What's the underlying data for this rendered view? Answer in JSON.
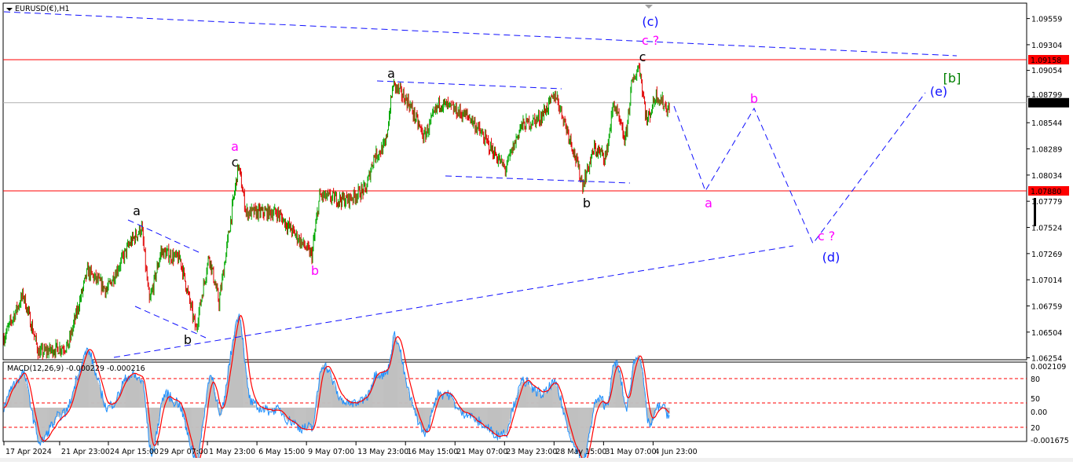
{
  "window": {
    "title": "EURUSD(€),H1"
  },
  "colors": {
    "bull": "#00a800",
    "bear": "#e00000",
    "wave_blue": "#1010ff",
    "wave_magenta": "#ff00ff",
    "wave_black": "#000000",
    "wave_green": "#008000",
    "level": "#ff0000",
    "bid": "#000000",
    "macd_hist": "#c0c0c0",
    "macd_line": "#1e90ff",
    "signal_line": "#ff0000"
  },
  "price_axis": {
    "ticks": [
      "1.09559",
      "1.09304",
      "1.09054",
      "1.08799",
      "1.08544",
      "1.08289",
      "1.08034",
      "1.07779",
      "1.07524",
      "1.07269",
      "1.07014",
      "1.06759",
      "1.06504",
      "1.06254"
    ],
    "tags": [
      {
        "label": "1.09158",
        "price": 1.09158,
        "color": "#ff0000"
      },
      {
        "label": "1.07880",
        "price": 1.0788,
        "color": "#ff0000"
      },
      {
        "label": "1.08739",
        "price": 1.08739,
        "color": "#000000"
      }
    ]
  },
  "time_axis": [
    {
      "label": "17 Apr 2024",
      "t": "2024-04-17T00:00"
    },
    {
      "label": "21 Apr 23:00",
      "t": "2024-04-21T23:00"
    },
    {
      "label": "24 Apr 15:00",
      "t": "2024-04-24T15:00"
    },
    {
      "label": "29 Apr 07:00",
      "t": "2024-04-29T07:00"
    },
    {
      "label": "1 May 23:00",
      "t": "2024-05-01T23:00"
    },
    {
      "label": "6 May 15:00",
      "t": "2024-05-06T15:00"
    },
    {
      "label": "9 May 07:00",
      "t": "2024-05-09T07:00"
    },
    {
      "label": "13 May 23:00",
      "t": "2024-05-13T23:00"
    },
    {
      "label": "16 May 15:00",
      "t": "2024-05-16T15:00"
    },
    {
      "label": "21 May 07:00",
      "t": "2024-05-21T07:00"
    },
    {
      "label": "23 May 23:00",
      "t": "2024-05-23T23:00"
    },
    {
      "label": "28 May 15:00",
      "t": "2024-05-28T15:00"
    },
    {
      "label": "31 May 07:00",
      "t": "2024-05-31T07:00"
    },
    {
      "label": "4 Jun 23:00",
      "t": "2024-06-04T23:00"
    }
  ],
  "chart_data": {
    "type": "candlestick",
    "symbol": "EURUSD(€),H1",
    "ylim": [
      1.0617,
      1.0973
    ],
    "grid": false,
    "price_path": [
      [
        "2024-04-17T00:00",
        1.0645
      ],
      [
        "2024-04-18T01:00",
        1.0687
      ],
      [
        "2024-04-18T21:00",
        1.063
      ],
      [
        "2024-04-22T11:00",
        1.0637
      ],
      [
        "2024-04-23T12:00",
        1.071
      ],
      [
        "2024-04-24T13:00",
        1.0691
      ],
      [
        "2024-04-25T19:00",
        1.0737
      ],
      [
        "2024-04-26T10:00",
        1.0752
      ],
      [
        "2024-04-26T20:00",
        1.0679
      ],
      [
        "2024-04-29T11:00",
        1.0729
      ],
      [
        "2024-04-30T12:00",
        1.0721
      ],
      [
        "2024-05-01T08:00",
        1.0653
      ],
      [
        "2024-05-02T01:00",
        1.0725
      ],
      [
        "2024-05-02T14:00",
        1.0679
      ],
      [
        "2024-05-03T15:00",
        1.0813
      ],
      [
        "2024-05-06T01:00",
        1.0767
      ],
      [
        "2024-05-07T17:00",
        1.0767
      ],
      [
        "2024-05-08T18:00",
        1.0744
      ],
      [
        "2024-05-09T14:00",
        1.0725
      ],
      [
        "2024-05-10T00:00",
        1.0783
      ],
      [
        "2024-05-13T11:00",
        1.0779
      ],
      [
        "2024-05-14T12:00",
        1.079
      ],
      [
        "2024-05-14T22:00",
        1.0821
      ],
      [
        "2024-05-15T13:00",
        1.0832
      ],
      [
        "2024-05-15T23:00",
        1.0892
      ],
      [
        "2024-05-16T19:00",
        1.0874
      ],
      [
        "2024-05-17T15:00",
        1.084
      ],
      [
        "2024-05-20T11:00",
        1.0874
      ],
      [
        "2024-05-22T03:00",
        1.0859
      ],
      [
        "2024-05-24T00:00",
        1.0809
      ],
      [
        "2024-05-24T20:00",
        1.0851
      ],
      [
        "2024-05-27T21:00",
        1.0859
      ],
      [
        "2024-05-28T17:00",
        1.0882
      ],
      [
        "2024-05-29T13:00",
        1.0836
      ],
      [
        "2024-05-30T04:00",
        1.0794
      ],
      [
        "2024-05-30T19:00",
        1.0829
      ],
      [
        "2024-05-31T10:00",
        1.0821
      ],
      [
        "2024-05-31T20:00",
        1.0874
      ],
      [
        "2024-06-03T11:00",
        1.0836
      ],
      [
        "2024-06-03T19:00",
        1.089
      ],
      [
        "2024-06-04T05:00",
        1.0911
      ],
      [
        "2024-06-04T15:00",
        1.0855
      ],
      [
        "2024-06-05T03:00",
        1.0882
      ],
      [
        "2024-06-05T21:00",
        1.0865
      ]
    ],
    "horizontal_levels": [
      1.09158,
      1.0788
    ],
    "current_price": 1.08739,
    "indicator": {
      "label": "MACD(12,26,9) -0.000229 -0.000216",
      "axis_labels": [
        "0.002109",
        "80",
        "50",
        "0.00",
        "20",
        "-0.001675"
      ],
      "ylim": [
        -0.001675,
        0.002109
      ],
      "levels": [
        80,
        50,
        20
      ]
    },
    "wave_labels": [
      {
        "text": "(c)",
        "color": "#1010ff"
      },
      {
        "text": "c ?",
        "color": "#ff00ff"
      },
      {
        "text": "c",
        "color": "#000000"
      },
      {
        "text": "a",
        "color": "#000000"
      },
      {
        "text": "[b]",
        "color": "#008000"
      },
      {
        "text": "(e)",
        "color": "#1010ff"
      },
      {
        "text": "b",
        "color": "#ff00ff"
      },
      {
        "text": "a",
        "color": "#ff00ff"
      },
      {
        "text": "c",
        "color": "#000000"
      },
      {
        "text": "a",
        "color": "#000000"
      },
      {
        "text": "b",
        "color": "#000000"
      },
      {
        "text": "a",
        "color": "#ff00ff"
      },
      {
        "text": "b",
        "color": "#ff00ff"
      },
      {
        "text": "c ?",
        "color": "#ff00ff"
      },
      {
        "text": "(d)",
        "color": "#1010ff"
      },
      {
        "text": "b",
        "color": "#000000"
      }
    ]
  }
}
